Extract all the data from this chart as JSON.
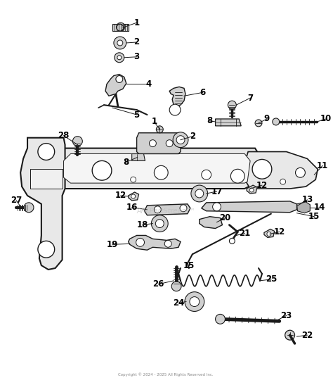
{
  "bg_color": "#ffffff",
  "watermark": "ARLPartStream™",
  "copyright": "Copyright © 2024 - 2025 All Rights Reserved Inc.",
  "fig_w": 4.74,
  "fig_h": 5.47,
  "dpi": 100,
  "line_color": "#1a1a1a",
  "fill_light": "#e8e8e8",
  "fill_mid": "#d0d0d0",
  "fill_dark": "#b0b0b0"
}
